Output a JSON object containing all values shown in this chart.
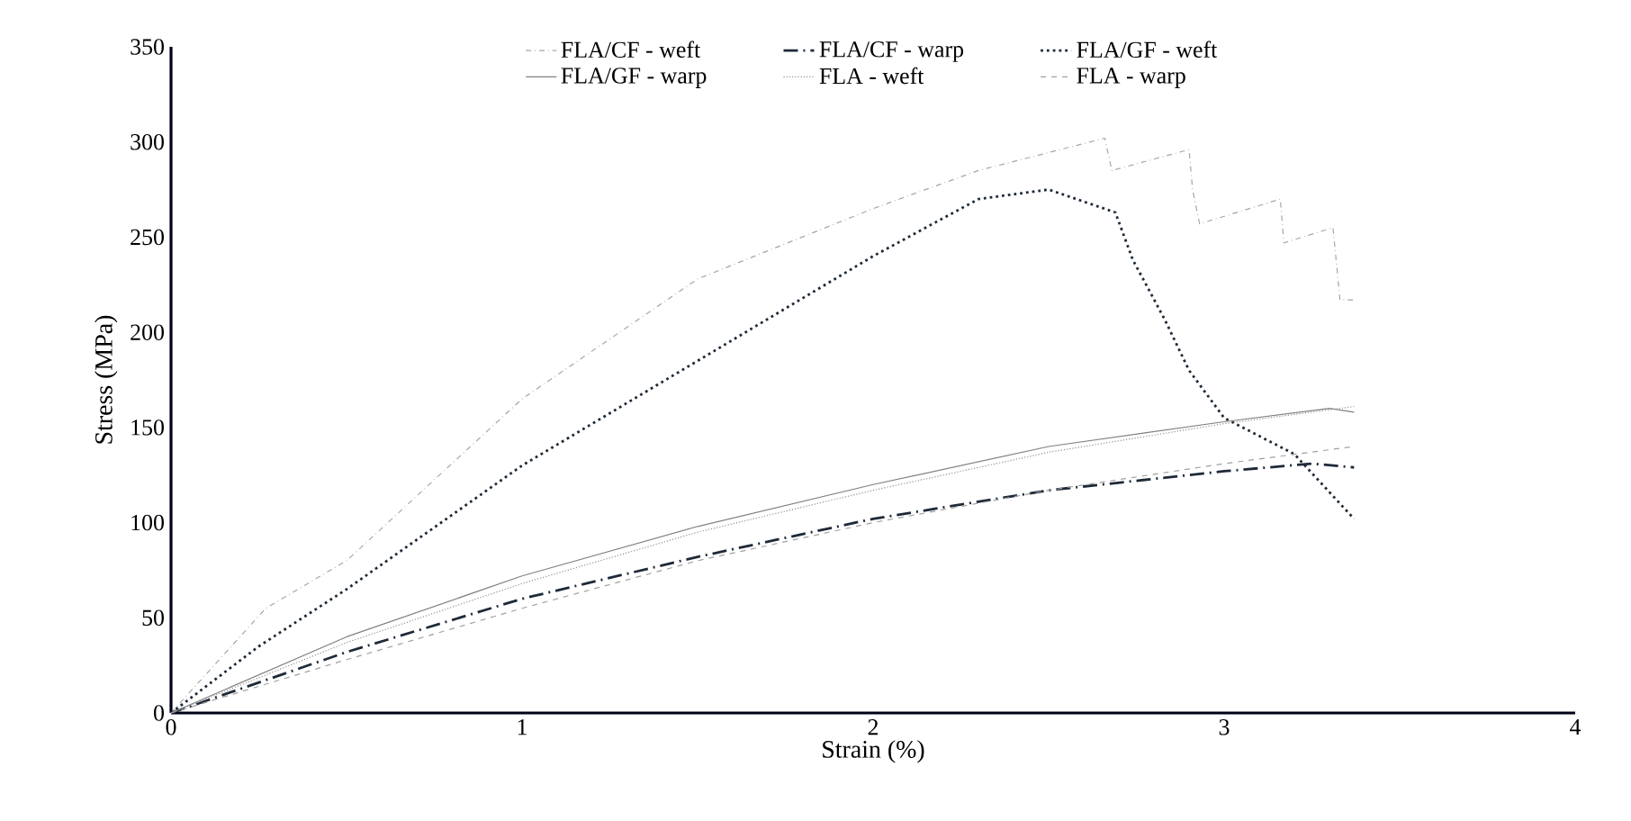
{
  "chart_data": {
    "type": "line",
    "xlabel": "Strain (%)",
    "ylabel": "Stress (MPa)",
    "xlim": [
      0,
      4
    ],
    "ylim": [
      0,
      350
    ],
    "xticks": [
      0,
      1,
      2,
      3,
      4
    ],
    "yticks": [
      0,
      50,
      100,
      150,
      200,
      250,
      300,
      350
    ],
    "grid": false,
    "legend": "top",
    "marker": "none",
    "series": [
      {
        "name": "FLA/CF - weft",
        "color": "#a6a6a6",
        "line_style": "dashdotted",
        "x": [
          0,
          0.27,
          0.5,
          1,
          1.5,
          2,
          2.3,
          2.66,
          2.68,
          2.9,
          2.91,
          2.93,
          3.16,
          3.17,
          3.31,
          3.33,
          3.37
        ],
        "values": [
          0,
          55,
          80,
          165,
          228,
          265,
          285,
          302,
          285,
          296,
          275,
          257,
          270,
          247,
          255,
          217,
          217
        ]
      },
      {
        "name": "FLA/CF - warp",
        "color": "#1f2a38",
        "line_style": "dashdotted",
        "x": [
          0,
          0.5,
          1,
          1.5,
          2,
          2.5,
          3,
          3.25,
          3.37
        ],
        "values": [
          0,
          32,
          60,
          82,
          102,
          117,
          127,
          131,
          129
        ]
      },
      {
        "name": "FLA/GF - weft",
        "color": "#1f2a38",
        "line_style": "dotted",
        "x": [
          0,
          0.25,
          0.5,
          1,
          1.5,
          2,
          2.3,
          2.5,
          2.69,
          2.74,
          2.83,
          2.9,
          3.0,
          3.2,
          3.37
        ],
        "values": [
          0,
          35,
          65,
          130,
          185,
          240,
          270,
          275,
          263,
          238,
          207,
          180,
          155,
          136,
          102
        ]
      },
      {
        "name": "FLA/GF - warp",
        "color": "#808080",
        "line_style": "solid",
        "x": [
          0,
          0.5,
          1,
          1.5,
          2,
          2.5,
          3,
          3.3,
          3.37
        ],
        "values": [
          0,
          40,
          72,
          98,
          120,
          140,
          153,
          160,
          158
        ]
      },
      {
        "name": "FLA - weft",
        "color": "#909090",
        "line_style": "densely dotted",
        "x": [
          0,
          0.5,
          1,
          1.5,
          2,
          2.5,
          3,
          3.37
        ],
        "values": [
          0,
          37,
          68,
          95,
          117,
          137,
          152,
          161
        ]
      },
      {
        "name": "FLA - warp",
        "color": "#a0a0a0",
        "line_style": "dashed",
        "x": [
          0,
          0.5,
          1,
          1.5,
          2,
          2.5,
          3,
          3.37
        ],
        "values": [
          0,
          28,
          55,
          80,
          100,
          117,
          131,
          140
        ]
      }
    ]
  }
}
